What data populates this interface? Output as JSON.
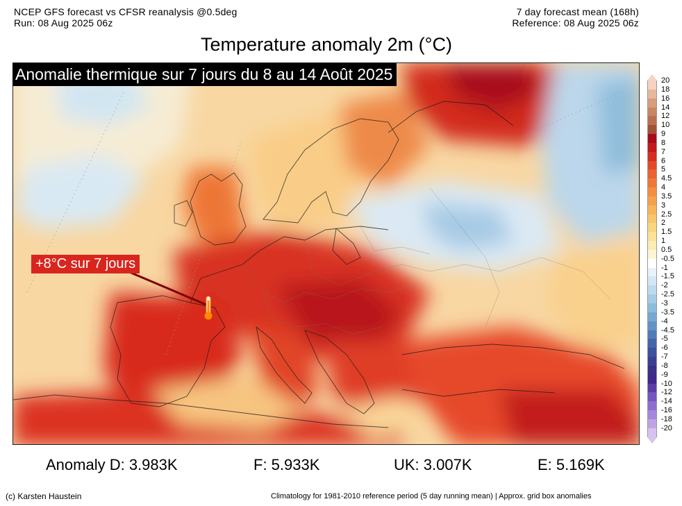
{
  "header": {
    "left_line1": "NCEP GFS forecast vs CFSR reanalysis @0.5deg",
    "left_line2": "Run: 08 Aug 2025 06z",
    "right_line1": "7 day forecast mean (168h)",
    "right_line2": "Reference: 08 Aug 2025 06z"
  },
  "title": "Temperature anomaly 2m (°C)",
  "map": {
    "banner": "Anomalie thermique sur 7 jours du 8 au 14 Août 2025",
    "callout": "+8°C sur 7 jours",
    "marker_icon": "thermometer-icon",
    "region": "Europe"
  },
  "colorbar": {
    "labels": [
      "20",
      "18",
      "16",
      "14",
      "12",
      "10",
      "9",
      "8",
      "7",
      "6",
      "5",
      "4.5",
      "4",
      "3.5",
      "3",
      "2.5",
      "2",
      "1.5",
      "1",
      "0.5",
      "-0.5",
      "-1",
      "-1.5",
      "-2",
      "-2.5",
      "-3",
      "-3.5",
      "-4",
      "-4.5",
      "-5",
      "-6",
      "-7",
      "-8",
      "-9",
      "-10",
      "-12",
      "-14",
      "-16",
      "-18",
      "-20"
    ],
    "colors": [
      "#f5d2c2",
      "#e8b89c",
      "#d89d7c",
      "#c98663",
      "#b97052",
      "#a35238",
      "#a80b1d",
      "#c3191e",
      "#d52d20",
      "#e24a2a",
      "#ea6332",
      "#ee783a",
      "#f28d43",
      "#f5a14d",
      "#f7b459",
      "#f9c66a",
      "#fad57e",
      "#fbe297",
      "#fcecb3",
      "#fdf6d6",
      "#ffffff",
      "#e9f2f9",
      "#d4e7f4",
      "#bcdbed",
      "#a3cde5",
      "#8bbcdc",
      "#75a9d1",
      "#6194c4",
      "#507cb7",
      "#4466a9",
      "#3d519c",
      "#3a408f",
      "#3a3086",
      "#41288a",
      "#5a3ea6",
      "#7456bc",
      "#8d6ecf",
      "#a687dc",
      "#bea3e6",
      "#d6c3ef"
    ]
  },
  "stats": {
    "d": "Anomaly D: 3.983K",
    "f": "F: 5.933K",
    "uk": "UK: 3.007K",
    "e": "E: 5.169K"
  },
  "footer": {
    "credit": "(c) Karsten Haustein",
    "climatology": "Climatology for 1981-2010 reference period (5 day running mean) | Approx. grid box anomalies"
  }
}
